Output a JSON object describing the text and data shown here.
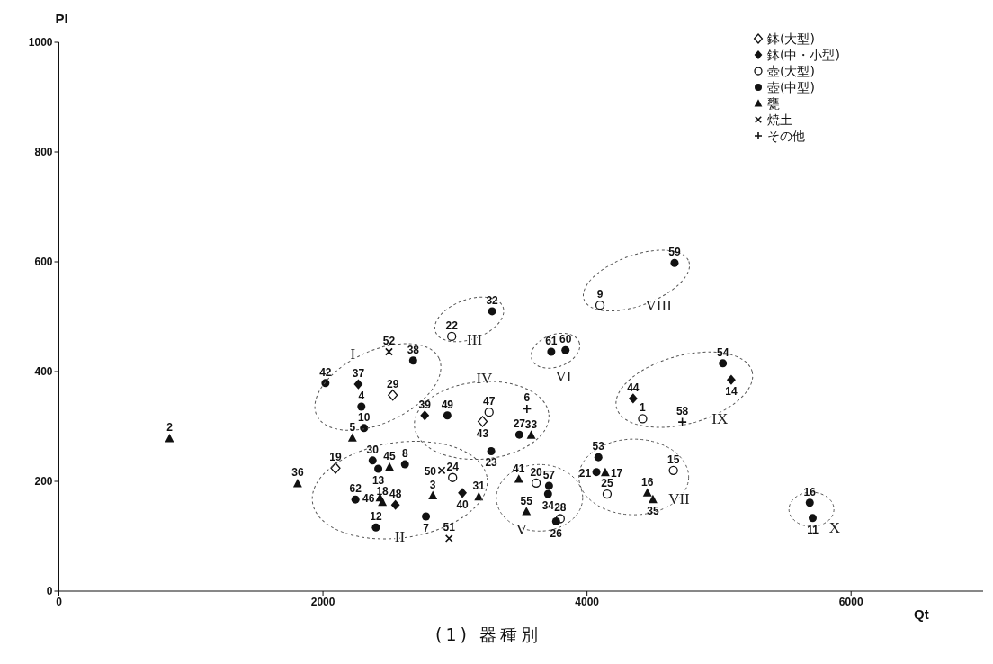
{
  "chart_data": {
    "type": "scatter",
    "title": "(1) 器種別",
    "xlabel": "Qt",
    "ylabel": "PI",
    "xlim": [
      0,
      7000
    ],
    "ylim": [
      0,
      1000
    ],
    "xticks": [
      0,
      2000,
      4000,
      6000
    ],
    "yticks": [
      0,
      200,
      400,
      600,
      800,
      1000
    ],
    "legend": "top right",
    "annotations": [
      "I",
      "II",
      "III",
      "IV",
      "V",
      "VI",
      "VII",
      "VIII",
      "IX",
      "X",
      {
        "text": "29",
        "x": 2529,
        "y": 357
      },
      {
        "text": "43",
        "x": 3209,
        "y": 309
      },
      {
        "text": "19",
        "x": 2095,
        "y": 224
      },
      {
        "text": "37",
        "x": 2268,
        "y": 377
      },
      {
        "text": "39",
        "x": 2771,
        "y": 320
      },
      {
        "text": "48",
        "x": 2549,
        "y": 157
      },
      {
        "text": "40",
        "x": 3056,
        "y": 179
      },
      {
        "text": "44",
        "x": 4349,
        "y": 351
      },
      {
        "text": "14",
        "x": 5092,
        "y": 385
      },
      {
        "text": "22",
        "x": 2975,
        "y": 464
      },
      {
        "text": "47",
        "x": 3258,
        "y": 326
      },
      {
        "text": "24",
        "x": 2982,
        "y": 207
      },
      {
        "text": "9",
        "x": 4098,
        "y": 521
      },
      {
        "text": "1",
        "x": 4421,
        "y": 314
      },
      {
        "text": "15",
        "x": 4654,
        "y": 220
      },
      {
        "text": "20",
        "x": 3615,
        "y": 197
      },
      {
        "text": "25",
        "x": 4152,
        "y": 177
      },
      {
        "text": "28",
        "x": 3797,
        "y": 132
      },
      {
        "text": "32",
        "x": 3281,
        "y": 510
      },
      {
        "text": "38",
        "x": 2683,
        "y": 420
      },
      {
        "text": "42",
        "x": 2019,
        "y": 379
      },
      {
        "text": "4",
        "x": 2291,
        "y": 336
      },
      {
        "text": "49",
        "x": 2942,
        "y": 320
      },
      {
        "text": "10",
        "x": 2311,
        "y": 297
      },
      {
        "text": "27",
        "x": 3487,
        "y": 285
      },
      {
        "text": "23",
        "x": 3274,
        "y": 255
      },
      {
        "text": "30",
        "x": 2376,
        "y": 238
      },
      {
        "text": "8",
        "x": 2621,
        "y": 231
      },
      {
        "text": "13",
        "x": 2419,
        "y": 223
      },
      {
        "text": "62",
        "x": 2246,
        "y": 167
      },
      {
        "text": "7",
        "x": 2780,
        "y": 136
      },
      {
        "text": "12",
        "x": 2401,
        "y": 116
      },
      {
        "text": "60",
        "x": 3837,
        "y": 439
      },
      {
        "text": "61",
        "x": 3729,
        "y": 436
      },
      {
        "text": "54",
        "x": 5029,
        "y": 415
      },
      {
        "text": "53",
        "x": 4086,
        "y": 244
      },
      {
        "text": "21",
        "x": 4071,
        "y": 217
      },
      {
        "text": "57",
        "x": 3712,
        "y": 192
      },
      {
        "text": "34",
        "x": 3705,
        "y": 177
      },
      {
        "text": "26",
        "x": 3766,
        "y": 127
      },
      {
        "text": "59",
        "x": 4663,
        "y": 598
      },
      {
        "text": "16",
        "x": 5687,
        "y": 161
      },
      {
        "text": "11",
        "x": 5709,
        "y": 133
      },
      {
        "text": "2",
        "x": 838,
        "y": 278
      },
      {
        "text": "5",
        "x": 2223,
        "y": 279
      },
      {
        "text": "36",
        "x": 1808,
        "y": 196
      },
      {
        "text": "45",
        "x": 2504,
        "y": 226
      },
      {
        "text": "46",
        "x": 2432,
        "y": 170
      },
      {
        "text": "18",
        "x": 2450,
        "y": 162
      },
      {
        "text": "3",
        "x": 2832,
        "y": 174
      },
      {
        "text": "31",
        "x": 3180,
        "y": 172
      },
      {
        "text": "33",
        "x": 3577,
        "y": 284
      },
      {
        "text": "17",
        "x": 4138,
        "y": 216
      },
      {
        "text": "41",
        "x": 3483,
        "y": 204
      },
      {
        "text": "55",
        "x": 3541,
        "y": 145
      },
      {
        "text": "16",
        "x": 4457,
        "y": 179
      },
      {
        "text": "35",
        "x": 4499,
        "y": 167
      },
      {
        "text": "52",
        "x": 2500,
        "y": 436
      },
      {
        "text": "50",
        "x": 2899,
        "y": 220
      },
      {
        "text": "51",
        "x": 2955,
        "y": 96
      },
      {
        "text": "6",
        "x": 3545,
        "y": 332
      },
      {
        "text": "58",
        "x": 4722,
        "y": 308
      }
    ],
    "series": [
      {
        "name": "鉢(大型)",
        "color": "#111111",
        "marker": "diamond-open",
        "x": [
          2529,
          3209,
          2095
        ],
        "values": [
          357,
          309,
          224
        ]
      },
      {
        "name": "鉢(中・小型)",
        "color": "#111111",
        "marker": "diamond",
        "x": [
          2268,
          2771,
          2549,
          3056,
          4349,
          5092
        ],
        "values": [
          377,
          320,
          157,
          179,
          351,
          385
        ]
      },
      {
        "name": "壺(大型)",
        "color": "#111111",
        "marker": "circle-open",
        "x": [
          2975,
          3258,
          2982,
          4098,
          4421,
          4654,
          3615,
          4152,
          3797
        ],
        "values": [
          464,
          326,
          207,
          521,
          314,
          220,
          197,
          177,
          132
        ]
      },
      {
        "name": "壺(中型)",
        "color": "#111111",
        "marker": "circle",
        "x": [
          3281,
          2683,
          2019,
          2291,
          2942,
          2311,
          3487,
          3274,
          2376,
          2621,
          2419,
          2246,
          2780,
          2401,
          3837,
          3729,
          5029,
          4086,
          4071,
          3712,
          3705,
          3766,
          4663,
          5687,
          5709
        ],
        "values": [
          510,
          420,
          379,
          336,
          320,
          297,
          285,
          255,
          238,
          231,
          223,
          167,
          136,
          116,
          439,
          436,
          415,
          244,
          217,
          192,
          177,
          127,
          598,
          161,
          133
        ]
      },
      {
        "name": "甕",
        "color": "#111111",
        "marker": "triangle",
        "x": [
          838,
          2223,
          1808,
          2504,
          2432,
          2450,
          2832,
          3180,
          3577,
          4138,
          3483,
          3541,
          4457,
          4499
        ],
        "values": [
          278,
          279,
          196,
          226,
          170,
          162,
          174,
          172,
          284,
          216,
          204,
          145,
          179,
          167
        ]
      },
      {
        "name": "焼土",
        "color": "#111111",
        "marker": "cross",
        "x": [
          2500,
          2899,
          2955
        ],
        "values": [
          436,
          220,
          96
        ]
      },
      {
        "name": "その他",
        "color": "#111111",
        "marker": "plus",
        "x": [
          3545,
          4722
        ],
        "values": [
          332,
          308
        ]
      }
    ]
  }
}
